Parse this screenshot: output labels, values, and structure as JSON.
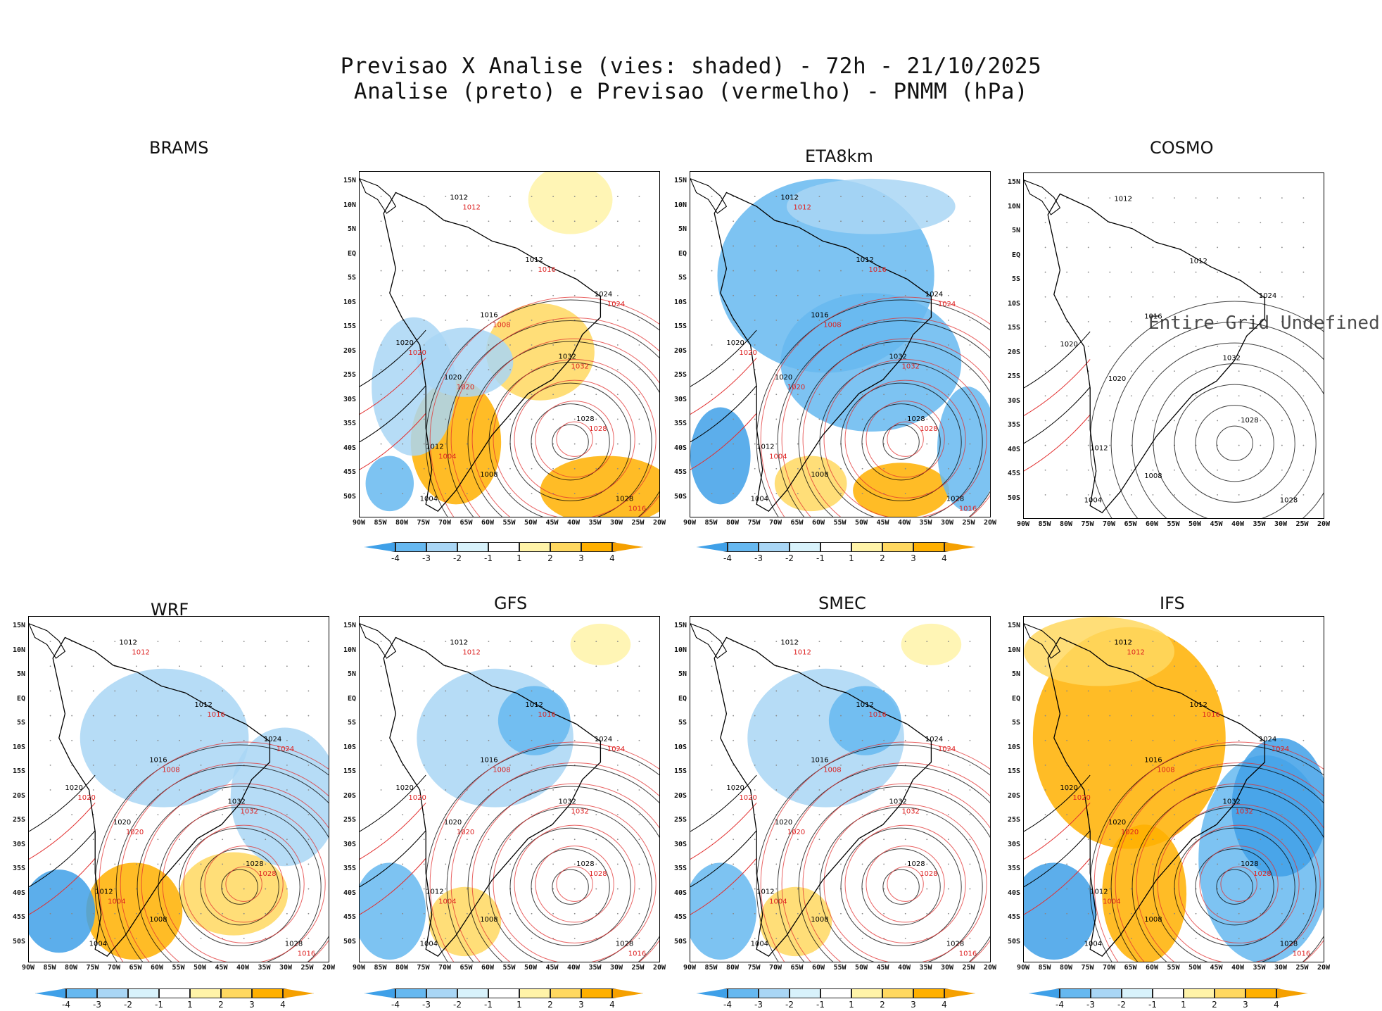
{
  "title": {
    "line1": "Previsao X Analise (vies: shaded) - 72h - 21/10/2025",
    "line2": "Analise (preto) e Previsao (vermelho) - PNMM (hPa)"
  },
  "lat_labels": [
    "15N",
    "10N",
    "5N",
    "EQ",
    "5S",
    "10S",
    "15S",
    "20S",
    "25S",
    "30S",
    "35S",
    "40S",
    "45S",
    "50S"
  ],
  "lon_labels": [
    "90W",
    "85W",
    "80W",
    "75W",
    "70W",
    "65W",
    "60W",
    "55W",
    "50W",
    "45W",
    "40W",
    "35W",
    "30W",
    "25W",
    "20W"
  ],
  "colorbar": {
    "ticks": [
      "-4",
      "-3",
      "-2",
      "-1",
      "1",
      "2",
      "3",
      "4"
    ],
    "colors": [
      "#3fa0e8",
      "#66b8f0",
      "#a9d6f5",
      "#d8f2fb",
      "#ffffff",
      "#fff3a8",
      "#ffd860",
      "#ffb000",
      "#f5a000"
    ]
  },
  "undefined_text": "Entire Grid Undefined",
  "panels": [
    {
      "name": "BRAMS",
      "label": "BRAMS",
      "bias": "warm-south",
      "has_map": false
    },
    {
      "name": "ETA-upper",
      "label": "",
      "bias": "warm-south",
      "has_map": true
    },
    {
      "name": "ETA8km",
      "label": "ETA8km",
      "bias": "cold",
      "has_map": true
    },
    {
      "name": "COSMO",
      "label": "COSMO",
      "bias": "none",
      "has_map": true
    },
    {
      "name": "WRF",
      "label": "WRF",
      "bias": "mixed",
      "has_map": true
    },
    {
      "name": "GFS",
      "label": "GFS",
      "bias": "mild-cold",
      "has_map": true
    },
    {
      "name": "SMEC",
      "label": "SMEC",
      "bias": "mild-cold",
      "has_map": true
    },
    {
      "name": "IFS",
      "label": "IFS",
      "bias": "warm-west-cold-east",
      "has_map": true
    }
  ],
  "contour_labels": {
    "analysis": [
      "1012",
      "1012",
      "1016",
      "1020",
      "1024",
      "1028",
      "1032",
      "1028",
      "1020",
      "1012",
      "1008",
      "1004"
    ],
    "forecast": [
      "1012",
      "1016",
      "1008",
      "1020",
      "1024",
      "1028",
      "1032",
      "1016",
      "1020",
      "1004"
    ]
  },
  "legend_map": {
    "analysis_color": "#000000",
    "forecast_color": "#e23030"
  }
}
